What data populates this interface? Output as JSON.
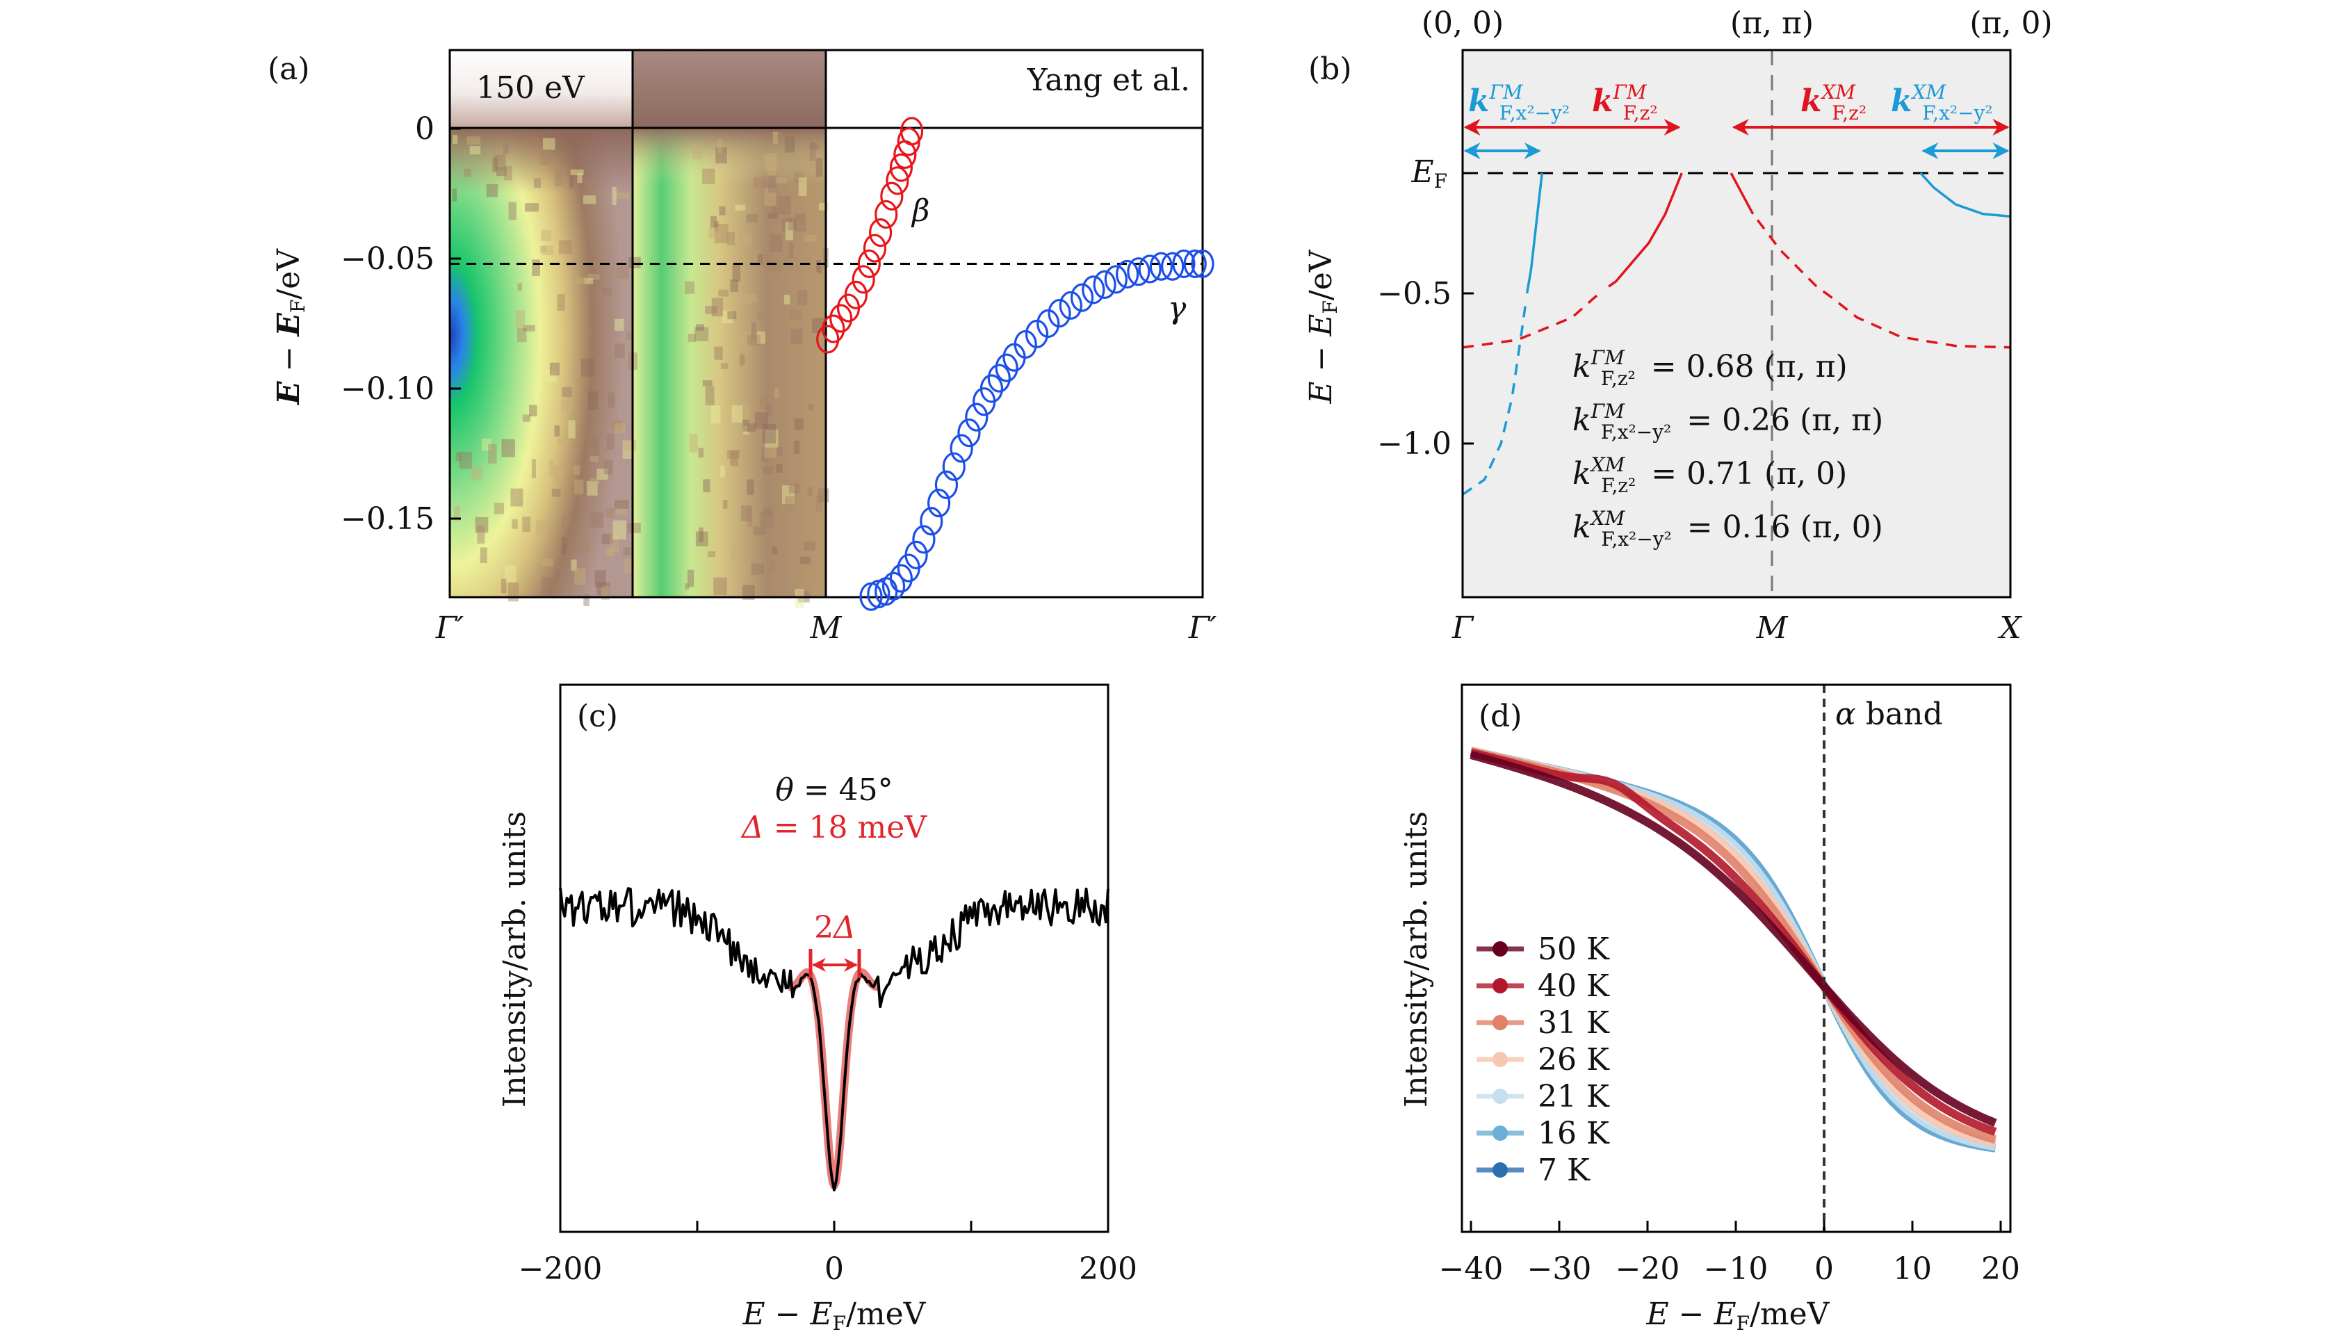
{
  "figure": {
    "panels": [
      "(a)",
      "(b)",
      "(c)",
      "(d)"
    ]
  },
  "chart_data": [
    {
      "panel": "(a)",
      "type": "scatter",
      "title": "",
      "xlabel": "",
      "ylabel": "E − E_F/eV",
      "ylabel_parts": {
        "E": "E",
        "minus": " − ",
        "EF": "E",
        "F": "F",
        "unit": "/eV"
      },
      "ylim": [
        -0.18,
        0.03
      ],
      "yticks": [
        0,
        -0.05,
        -0.1,
        -0.15
      ],
      "ytick_labels": [
        "0",
        "−0.05",
        "−0.10",
        "−0.15"
      ],
      "xtick_labels": [
        "Γ′",
        "M",
        "Γ′"
      ],
      "inset_labels": {
        "photon_energy": "150 eV",
        "reference": "Yang et al."
      },
      "reference_line_energy": -0.052,
      "series": [
        {
          "name": "β",
          "color": "#e8161b",
          "marker": "open-circle",
          "x": [
            0.005,
            0.02,
            0.04,
            0.06,
            0.08,
            0.1,
            0.115,
            0.13,
            0.145,
            0.16,
            0.175,
            0.19,
            0.2,
            0.21,
            0.22,
            0.228
          ],
          "y": [
            -0.081,
            -0.077,
            -0.073,
            -0.069,
            -0.064,
            -0.058,
            -0.052,
            -0.046,
            -0.04,
            -0.033,
            -0.026,
            -0.02,
            -0.015,
            -0.01,
            -0.005,
            -0.001
          ]
        },
        {
          "name": "γ",
          "color": "#1c4fe8",
          "marker": "open-circle",
          "x": [
            0.12,
            0.14,
            0.16,
            0.18,
            0.2,
            0.22,
            0.24,
            0.26,
            0.28,
            0.3,
            0.32,
            0.34,
            0.36,
            0.38,
            0.4,
            0.42,
            0.44,
            0.46,
            0.48,
            0.5,
            0.53,
            0.56,
            0.59,
            0.62,
            0.65,
            0.68,
            0.71,
            0.74,
            0.77,
            0.8,
            0.83,
            0.86,
            0.89,
            0.92,
            0.95,
            0.98,
            1.0
          ],
          "y": [
            -0.18,
            -0.179,
            -0.178,
            -0.176,
            -0.173,
            -0.169,
            -0.164,
            -0.158,
            -0.151,
            -0.144,
            -0.137,
            -0.13,
            -0.123,
            -0.117,
            -0.111,
            -0.105,
            -0.1,
            -0.096,
            -0.092,
            -0.088,
            -0.083,
            -0.079,
            -0.075,
            -0.071,
            -0.068,
            -0.065,
            -0.062,
            -0.06,
            -0.058,
            -0.056,
            -0.055,
            -0.054,
            -0.053,
            -0.053,
            -0.052,
            -0.052,
            -0.052
          ]
        }
      ],
      "band_labels": {
        "beta": "β",
        "gamma": "γ"
      }
    },
    {
      "panel": "(b)",
      "type": "line",
      "ylabel": "E − E_F/eV",
      "ytick_labels": [
        "E_F",
        "−0.5",
        "−1.0"
      ],
      "yticks": [
        0,
        -0.5,
        -1.0
      ],
      "ylim": [
        -1.3,
        0.25
      ],
      "xtick_labels": [
        "Γ",
        "M",
        "X"
      ],
      "top_labels": [
        "(0, 0)",
        "(π, π)",
        "(π, 0)"
      ],
      "background": "#eeeeee",
      "annotations": [
        {
          "label": "k_F,x2−y2^ΓM",
          "value": "0.26 (π, π)"
        },
        {
          "label": "k_F,z2^ΓM",
          "value": "0.68 (π, π)"
        },
        {
          "label": "k_F,z2^XM",
          "value": "0.71 (π, 0)"
        },
        {
          "label": "k_F,x2−y2^XM",
          "value": "0.16 (π, 0)"
        }
      ],
      "text_lines": [
        {
          "sym": "k",
          "sub": "F,z²",
          "sup": "ΓM",
          "eq": "= 0.68 (π, π)"
        },
        {
          "sym": "k",
          "sub": "F,x²−y²",
          "sup": "ΓM",
          "eq": "= 0.26 (π, π)"
        },
        {
          "sym": "k",
          "sub": "F,z²",
          "sup": "XM",
          "eq": "= 0.71 (π, 0)"
        },
        {
          "sym": "k",
          "sub": "F,x²−y²",
          "sup": "XM",
          "eq": "= 0.16 (π, 0)"
        }
      ],
      "arrow_labels": [
        {
          "sym": "k",
          "sub": "F,x²−y²",
          "sup": "ΓM",
          "color": "#1b9ad6"
        },
        {
          "sym": "k",
          "sub": "F,z²",
          "sup": "ΓM",
          "color": "#e0141e"
        },
        {
          "sym": "k",
          "sub": "F,z²",
          "sup": "XM",
          "color": "#e0141e"
        },
        {
          "sym": "k",
          "sub": "F,x²−y²",
          "sup": "XM",
          "color": "#1b9ad6"
        }
      ],
      "series": [
        {
          "name": "z2 ΓM",
          "color": "#e0141e",
          "x_frac": [
            0.0,
            0.1,
            0.2,
            0.28,
            0.34,
            0.37,
            0.4
          ],
          "y": [
            -0.68,
            -0.655,
            -0.58,
            -0.45,
            -0.29,
            -0.17,
            0.0
          ],
          "dashed_until_frac": 0.26
        },
        {
          "name": "x2-y2 ΓM",
          "color": "#1b9ad6",
          "x_frac": [
            0.0,
            0.04,
            0.07,
            0.09,
            0.11,
            0.125,
            0.145
          ],
          "y": [
            -1.17,
            -1.12,
            -1.0,
            -0.85,
            -0.6,
            -0.4,
            0.0
          ],
          "dashed_until_frac": 0.115
        },
        {
          "name": "z2 XM",
          "color": "#e0141e",
          "x_frac": [
            0.49,
            0.53,
            0.58,
            0.65,
            0.72,
            0.8,
            0.9,
            1.0
          ],
          "y": [
            0.0,
            -0.17,
            -0.32,
            -0.48,
            -0.58,
            -0.645,
            -0.675,
            -0.68
          ],
          "dashed_from_frac": 0.535
        },
        {
          "name": "x2-y2 XM",
          "color": "#1b9ad6",
          "x_frac": [
            0.836,
            0.86,
            0.9,
            0.95,
            1.0
          ],
          "y": [
            0.0,
            -0.06,
            -0.13,
            -0.17,
            -0.18
          ]
        }
      ],
      "arrows": [
        {
          "color": "#e0141e",
          "from_frac": 0.0,
          "to_frac": 0.4,
          "row": "upper"
        },
        {
          "color": "#1b9ad6",
          "from_frac": 0.0,
          "to_frac": 0.145,
          "row": "lower"
        },
        {
          "color": "#e0141e",
          "from_frac": 0.49,
          "to_frac": 1.0,
          "row": "upper"
        },
        {
          "color": "#1b9ad6",
          "from_frac": 0.836,
          "to_frac": 1.0,
          "row": "lower"
        }
      ]
    },
    {
      "panel": "(c)",
      "type": "line",
      "xlabel": "E − E_F/meV",
      "ylabel": "Intensity/arb. units",
      "xlim": [
        -200,
        200
      ],
      "xticks": [
        -200,
        -100,
        0,
        100,
        200
      ],
      "xtick_labels": [
        "−200",
        "0",
        "200"
      ],
      "annotations": {
        "theta": "θ = 45°",
        "delta": "Δ = 18 meV",
        "two_delta": "2Δ"
      },
      "gap_meV": 18,
      "series": [
        {
          "name": "spectrum",
          "color": "#000000",
          "description": "noisy symmetrized spectrum with V-shaped suppression and coherence peaks at ±18 meV"
        },
        {
          "name": "fit",
          "color": "#e8706c",
          "x_range": [
            -33,
            33
          ]
        }
      ]
    },
    {
      "panel": "(d)",
      "type": "line",
      "xlabel": "E − E_F/meV",
      "ylabel": "Intensity/arb. units",
      "xlim": [
        -41,
        21
      ],
      "xticks": [
        -40,
        -30,
        -20,
        -10,
        0,
        10,
        20
      ],
      "xtick_labels": [
        "−40",
        "−30",
        "−20",
        "−10",
        "0",
        "10",
        "20"
      ],
      "annotation": "α band",
      "legend_position": "center-left",
      "series": [
        {
          "name": "50 K",
          "color": "#67001f",
          "temperature_K": 50
        },
        {
          "name": "40 K",
          "color": "#b2182b",
          "temperature_K": 40
        },
        {
          "name": "31 K",
          "color": "#e0826a",
          "temperature_K": 31
        },
        {
          "name": "26 K",
          "color": "#f7c7b0",
          "temperature_K": 26
        },
        {
          "name": "21 K",
          "color": "#c6dfee",
          "temperature_K": 21
        },
        {
          "name": "16 K",
          "color": "#6baed6",
          "temperature_K": 16
        },
        {
          "name": "7 K",
          "color": "#2b6fb0",
          "temperature_K": 7
        }
      ]
    }
  ]
}
